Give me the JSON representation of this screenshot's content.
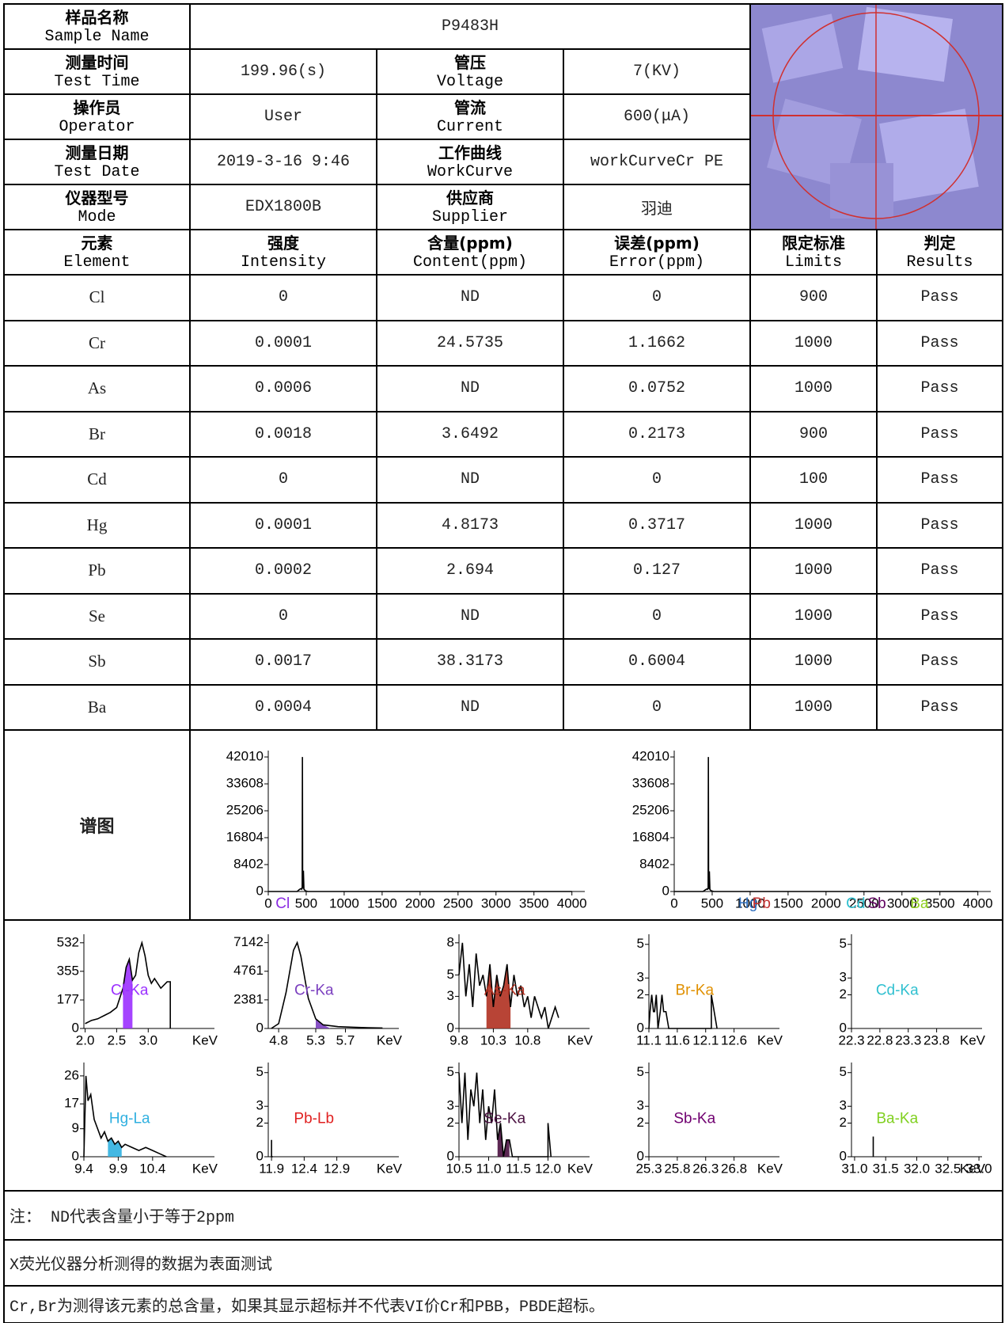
{
  "info": {
    "sample": {
      "zh": "样品名称",
      "en": "Sample Name",
      "value": "P9483H"
    },
    "rows": [
      [
        {
          "zh": "测量时间",
          "en": "Test Time",
          "value": "199.96(s)"
        },
        {
          "zh": "管压",
          "en": "Voltage",
          "value": "7(KV)"
        }
      ],
      [
        {
          "zh": "操作员",
          "en": "Operator",
          "value": "User"
        },
        {
          "zh": "管流",
          "en": "Current",
          "value": "600(μA)"
        }
      ],
      [
        {
          "zh": "测量日期",
          "en": "Test Date",
          "value": "2019-3-16 9:46"
        },
        {
          "zh": "工作曲线",
          "en": "WorkCurve",
          "value": "workCurveCr PE"
        }
      ],
      [
        {
          "zh": "仪器型号",
          "en": "Mode",
          "value": "EDX1800B"
        },
        {
          "zh": "供应商",
          "en": "Supplier",
          "value": "羽迪"
        }
      ]
    ]
  },
  "results": {
    "headers": [
      {
        "zh": "元素",
        "en": "Element"
      },
      {
        "zh": "强度",
        "en": "Intensity"
      },
      {
        "zh": "含量(ppm)",
        "en": "Content(ppm)"
      },
      {
        "zh": "误差(ppm)",
        "en": "Error(ppm)"
      },
      {
        "zh": "限定标准",
        "en": "Limits"
      },
      {
        "zh": "判定",
        "en": "Results"
      }
    ],
    "rows": [
      [
        "Cl",
        "0",
        "ND",
        "0",
        "900",
        "Pass"
      ],
      [
        "Cr",
        "0.0001",
        "24.5735",
        "1.1662",
        "1000",
        "Pass"
      ],
      [
        "As",
        "0.0006",
        "ND",
        "0.0752",
        "1000",
        "Pass"
      ],
      [
        "Br",
        "0.0018",
        "3.6492",
        "0.2173",
        "900",
        "Pass"
      ],
      [
        "Cd",
        "0",
        "ND",
        "0",
        "100",
        "Pass"
      ],
      [
        "Hg",
        "0.0001",
        "4.8173",
        "0.3717",
        "1000",
        "Pass"
      ],
      [
        "Pb",
        "0.0002",
        "2.694",
        "0.127",
        "1000",
        "Pass"
      ],
      [
        "Se",
        "0",
        "ND",
        "0",
        "1000",
        "Pass"
      ],
      [
        "Sb",
        "0.0017",
        "38.3173",
        "0.6004",
        "1000",
        "Pass"
      ],
      [
        "Ba",
        "0.0004",
        "ND",
        "0",
        "1000",
        "Pass"
      ]
    ]
  },
  "spectrum": {
    "label": "谱图",
    "overview": [
      {
        "type": "line",
        "color": "#000000",
        "xlim": [
          0,
          4170
        ],
        "ylim": [
          0,
          44000
        ],
        "xticks": [
          0,
          500,
          1000,
          1500,
          2000,
          2500,
          3000,
          3500,
          4000
        ],
        "yticks": [
          0,
          8402,
          16804,
          25206,
          33608,
          42010
        ],
        "x": [
          0,
          380,
          410,
          430,
          440,
          447,
          450,
          453,
          458,
          463,
          470,
          490,
          520,
          4000
        ],
        "y": [
          0,
          0,
          600,
          900,
          700,
          1200,
          42000,
          2500,
          900,
          6500,
          700,
          200,
          0,
          0
        ],
        "annotations": [
          {
            "text": "Cl",
            "x": 190,
            "color": "#8a2be2"
          }
        ]
      },
      {
        "type": "line",
        "color": "#000000",
        "xlim": [
          0,
          4170
        ],
        "ylim": [
          0,
          44000
        ],
        "xticks": [
          0,
          500,
          1000,
          1500,
          2000,
          2500,
          3000,
          3500,
          4000
        ],
        "yticks": [
          0,
          8402,
          16804,
          25206,
          33608,
          42010
        ],
        "x": [
          0,
          380,
          410,
          430,
          440,
          447,
          450,
          453,
          458,
          463,
          470,
          490,
          520,
          4000
        ],
        "y": [
          0,
          0,
          500,
          800,
          700,
          1100,
          42000,
          2400,
          800,
          6300,
          600,
          200,
          0,
          0
        ],
        "annotations": [
          {
            "text": "Hg",
            "x": 970,
            "color": "#3070c0"
          },
          {
            "text": "Pb",
            "x": 1150,
            "color": "#c03030"
          },
          {
            "text": "Cd",
            "x": 2390,
            "color": "#30c0d0"
          },
          {
            "text": "Sb",
            "x": 2670,
            "color": "#600060"
          },
          {
            "text": "Ba",
            "x": 3230,
            "color": "#90d020"
          }
        ]
      }
    ],
    "peaks": [
      {
        "type": "line",
        "label": "Cl-Ka",
        "color": "#9b30ff",
        "unit": "KeV",
        "xlim": [
          1.98,
          4.05
        ],
        "ylim": [
          0,
          585
        ],
        "yticks": [
          0,
          177,
          355,
          532
        ],
        "xticks": [
          {
            "value": 2,
            "label": "2.0"
          },
          2.5,
          {
            "value": 3,
            "label": "3.0"
          }
        ],
        "x": [
          2.0,
          2.1,
          2.2,
          2.3,
          2.4,
          2.5,
          2.6,
          2.65,
          2.7,
          2.75,
          2.8,
          2.85,
          2.9,
          2.95,
          3.0,
          3.05,
          3.1,
          3.2,
          3.3,
          3.35,
          3.35
        ],
        "y": [
          30,
          50,
          60,
          80,
          100,
          130,
          250,
          380,
          430,
          300,
          330,
          470,
          532,
          450,
          330,
          280,
          310,
          250,
          290,
          290,
          0
        ],
        "highlight": [
          2.6,
          2.75
        ]
      },
      {
        "type": "line",
        "label": "Cr-Ka",
        "color": "#7b3fbf",
        "unit": "KeV",
        "xlim": [
          4.66,
          6.42
        ],
        "ylim": [
          0,
          7840
        ],
        "yticks": [
          0,
          2381,
          4761,
          7142
        ],
        "xticks": [
          4.8,
          5.3,
          5.7
        ],
        "x": [
          4.7,
          4.8,
          4.9,
          5.0,
          5.05,
          5.1,
          5.2,
          5.3,
          5.4,
          5.6,
          5.8,
          6.0,
          6.2
        ],
        "y": [
          0,
          400,
          3000,
          6500,
          7142,
          6000,
          2500,
          800,
          300,
          150,
          100,
          60,
          40
        ],
        "highlight": [
          5.3,
          5.5
        ]
      },
      {
        "type": "line",
        "label": "As-Ka",
        "color": "#b03020",
        "unit": "KeV",
        "xlim": [
          9.8,
          11.7
        ],
        "ylim": [
          0,
          8.8
        ],
        "yticks": [
          0,
          3,
          5,
          8
        ],
        "xticks": [
          9.8,
          10.3,
          10.8
        ],
        "x": [
          9.8,
          9.85,
          9.9,
          9.95,
          10.0,
          10.05,
          10.1,
          10.15,
          10.2,
          10.25,
          10.3,
          10.35,
          10.4,
          10.45,
          10.5,
          10.55,
          10.6,
          10.65,
          10.7,
          10.75,
          10.8,
          10.85,
          10.9,
          10.95,
          11.0,
          11.05,
          11.1,
          11.15,
          11.2,
          11.25
        ],
        "y": [
          5,
          8,
          3,
          6,
          2,
          7,
          4,
          5,
          3,
          6,
          2,
          5,
          3,
          4,
          6,
          2,
          5,
          3,
          4,
          2,
          3,
          1,
          3,
          2,
          1,
          2,
          0,
          1,
          2,
          1
        ],
        "highlight": [
          10.2,
          10.55
        ]
      },
      {
        "type": "line",
        "label": "Br-Ka",
        "color": "#e09000",
        "unit": "KeV",
        "xlim": [
          11.1,
          13.4
        ],
        "ylim": [
          0,
          5.6
        ],
        "yticks": [
          0,
          2,
          3,
          5
        ],
        "xticks": [
          11.1,
          11.6,
          12.1,
          12.6
        ],
        "x": [
          11.1,
          11.12,
          11.15,
          11.18,
          11.2,
          11.23,
          11.26,
          11.3,
          11.33,
          11.36,
          11.4,
          11.45,
          11.5,
          12.2,
          12.2,
          12.3
        ],
        "y": [
          0,
          1,
          2,
          1,
          1,
          2,
          0,
          1,
          2,
          1,
          1,
          0,
          0,
          0,
          2,
          0
        ]
      },
      {
        "type": "line",
        "label": "Cd-Ka",
        "color": "#30c0d0",
        "unit": "KeV",
        "xlim": [
          22.3,
          24.6
        ],
        "ylim": [
          0,
          5.6
        ],
        "yticks": [
          0,
          2,
          3,
          5
        ],
        "xticks": [
          22.3,
          22.8,
          23.3,
          23.8
        ]
      },
      {
        "type": "line",
        "label": "Hg-La",
        "color": "#30b0e0",
        "unit": "KeV",
        "xlim": [
          9.4,
          11.3
        ],
        "ylim": [
          0,
          30.3
        ],
        "yticks": [
          0,
          9,
          17,
          26
        ],
        "xticks": [
          9.4,
          9.9,
          10.4
        ],
        "x": [
          9.4,
          9.43,
          9.46,
          9.5,
          9.55,
          9.6,
          9.65,
          9.7,
          9.75,
          9.8,
          9.85,
          9.9,
          9.95,
          10.0,
          10.1,
          10.2,
          10.3,
          10.4,
          10.5,
          10.6
        ],
        "y": [
          0,
          26,
          18,
          20,
          12,
          9,
          6,
          8,
          5,
          6,
          4,
          5,
          3,
          4,
          3,
          2,
          3,
          2,
          1,
          0
        ],
        "highlight": [
          9.75,
          9.95
        ]
      },
      {
        "type": "line",
        "label": "Pb-Lb",
        "color": "#e02020",
        "unit": "KeV",
        "xlim": [
          11.85,
          13.85
        ],
        "ylim": [
          0,
          5.6
        ],
        "yticks": [
          0,
          2,
          3,
          5
        ],
        "xticks": [
          11.9,
          12.4,
          12.9
        ],
        "x": [
          11.9,
          11.9,
          11.92
        ],
        "y": [
          1,
          0,
          0
        ]
      },
      {
        "type": "line",
        "label": "Se-Ka",
        "color": "#4a1040",
        "unit": "KeV",
        "xlim": [
          10.5,
          12.7
        ],
        "ylim": [
          0,
          5.6
        ],
        "yticks": [
          0,
          2,
          3,
          5
        ],
        "xticks": [
          10.5,
          {
            "value": 11,
            "label": "11.0"
          },
          11.5,
          {
            "value": 12,
            "label": "12.0"
          }
        ],
        "x": [
          10.5,
          10.55,
          10.6,
          10.65,
          10.7,
          10.75,
          10.8,
          10.85,
          10.9,
          10.95,
          11.0,
          11.05,
          11.1,
          11.15,
          11.2,
          11.25,
          11.3,
          11.35,
          11.4,
          11.5,
          12.0,
          12.0,
          12.05
        ],
        "y": [
          5,
          2,
          5,
          1,
          4,
          3,
          5,
          2,
          4,
          1,
          3,
          2,
          4,
          1,
          2,
          0,
          1,
          1,
          0,
          0,
          0,
          2,
          0
        ],
        "highlight": [
          11.15,
          11.35
        ]
      },
      {
        "type": "line",
        "label": "Sb-Ka",
        "color": "#700070",
        "unit": "KeV",
        "xlim": [
          25.3,
          27.6
        ],
        "ylim": [
          0,
          5.6
        ],
        "yticks": [
          0,
          2,
          3,
          5
        ],
        "xticks": [
          25.3,
          25.8,
          26.3,
          26.8
        ]
      },
      {
        "type": "line",
        "label": "Ba-Ka",
        "color": "#80d020",
        "unit": "KeV",
        "xlim": [
          30.95,
          33.05
        ],
        "ylim": [
          0,
          5.6
        ],
        "yticks": [
          0,
          2,
          3,
          5
        ],
        "xticks": [
          {
            "value": 31,
            "label": "31.0"
          },
          31.5,
          {
            "value": 32,
            "label": "32.0"
          },
          32.5,
          {
            "value": 33,
            "label": "33.0"
          }
        ],
        "x": [
          31.3,
          31.3
        ],
        "y": [
          0,
          1.2
        ]
      }
    ]
  },
  "notes": [
    "注： ND代表含量小于等于2ppm",
    "X荧光仪器分析测得的数据为表面测试",
    "Cr,Br为测得该元素的总含量，如果其显示超标并不代表VI价Cr和PBB，PBDE超标。"
  ]
}
